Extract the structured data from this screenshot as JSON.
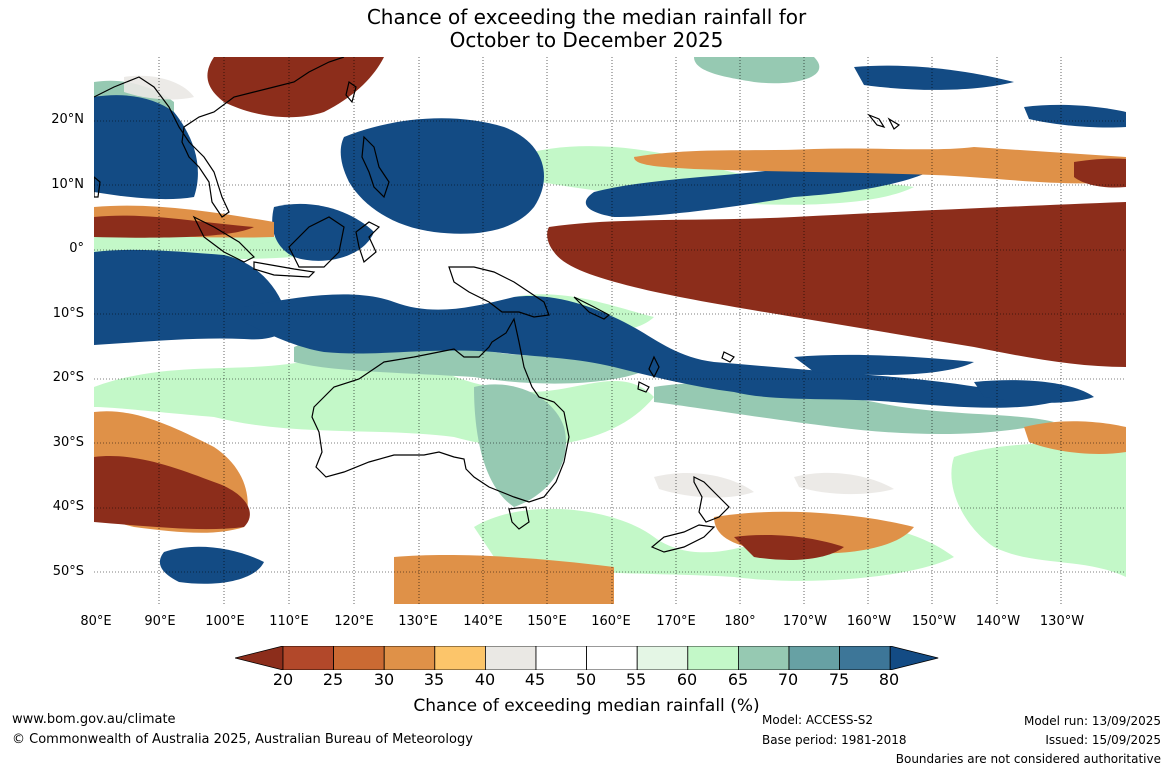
{
  "title": {
    "line1": "Chance of exceeding the median rainfall for",
    "line2": "October to December 2025"
  },
  "map": {
    "lat_labels": [
      "20°N",
      "10°N",
      "0°",
      "10°S",
      "20°S",
      "30°S",
      "40°S",
      "50°S"
    ],
    "lon_labels": [
      "80°E",
      "90°E",
      "100°E",
      "110°E",
      "120°E",
      "130°E",
      "140°E",
      "150°E",
      "160°E",
      "170°E",
      "180°",
      "170°W",
      "160°W",
      "150°W",
      "140°W",
      "130°W"
    ],
    "ocean_color": "#ffffff",
    "coastline_color": "#000000",
    "contour_color": "#8c8c8c"
  },
  "colorbar": {
    "ticks": [
      "20",
      "25",
      "30",
      "35",
      "40",
      "45",
      "50",
      "55",
      "60",
      "65",
      "70",
      "75",
      "80"
    ],
    "colors": [
      "#8c2d1b",
      "#b2482a",
      "#cb6a33",
      "#df9148",
      "#fcc56a",
      "#eae8e4",
      "#ffffff",
      "#ffffff",
      "#e4f6e5",
      "#c3f8c8",
      "#96c9b2",
      "#67a1a4",
      "#3d7698",
      "#134b84"
    ],
    "title": "Chance of exceeding median rainfall (%)"
  },
  "footer": {
    "website": "www.bom.gov.au/climate",
    "copyright": "© Commonwealth of Australia 2025, Australian Bureau of Meteorology",
    "model": "Model: ACCESS-S2",
    "base_period": "Base period: 1981-2018",
    "model_run": "Model run: 13/09/2025",
    "issued": "Issued: 15/09/2025",
    "disclaimer": "Boundaries are not considered authoritative"
  }
}
